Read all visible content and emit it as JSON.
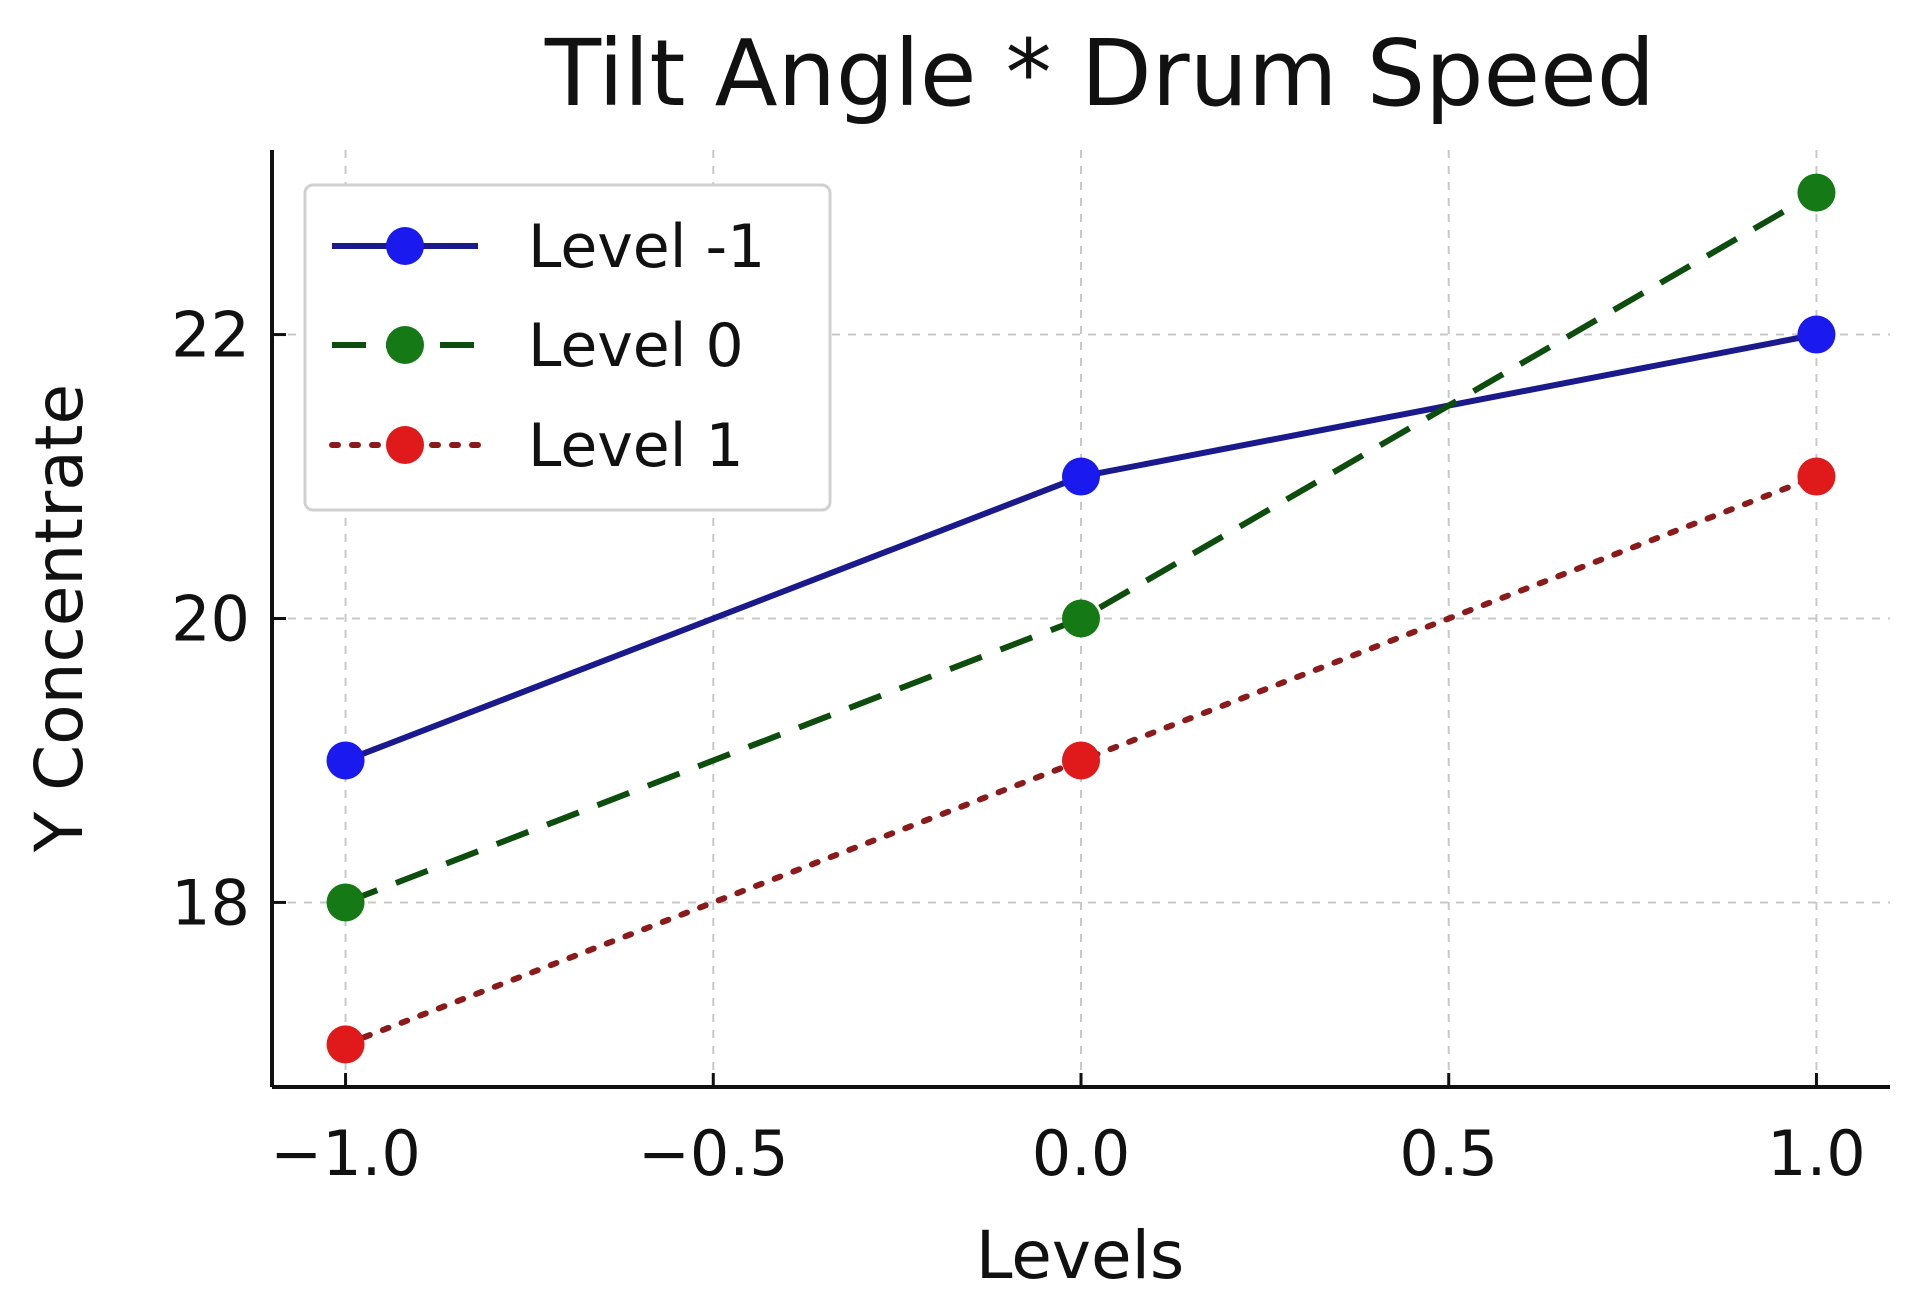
{
  "chart_data": {
    "type": "line",
    "title": "Tilt Angle * Drum Speed",
    "xlabel": "Levels",
    "ylabel": "Y Concentrate",
    "x": [
      -1.0,
      0.0,
      1.0
    ],
    "xlim": [
      -1.1,
      1.1
    ],
    "ylim": [
      16.7,
      23.3
    ],
    "xticks": [
      -1.0,
      -0.5,
      0.0,
      0.5,
      1.0
    ],
    "xtick_labels": [
      "−1.0",
      "−0.5",
      "0.0",
      "0.5",
      "1.0"
    ],
    "yticks": [
      18,
      20,
      22
    ],
    "ytick_labels": [
      "18",
      "20",
      "22"
    ],
    "grid": true,
    "legend_position": "top-left",
    "series": [
      {
        "name": "Level -1",
        "values": [
          19,
          21,
          22
        ],
        "color": "#1a1a8c",
        "marker_color": "#1a1aee",
        "line_style": "solid"
      },
      {
        "name": "Level 0",
        "values": [
          18,
          20,
          23
        ],
        "color": "#0d4d0d",
        "marker_color": "#157a15",
        "line_style": "dashed"
      },
      {
        "name": "Level 1",
        "values": [
          17,
          19,
          21
        ],
        "color": "#8b1a1a",
        "marker_color": "#e01a1a",
        "line_style": "dotted"
      }
    ]
  }
}
